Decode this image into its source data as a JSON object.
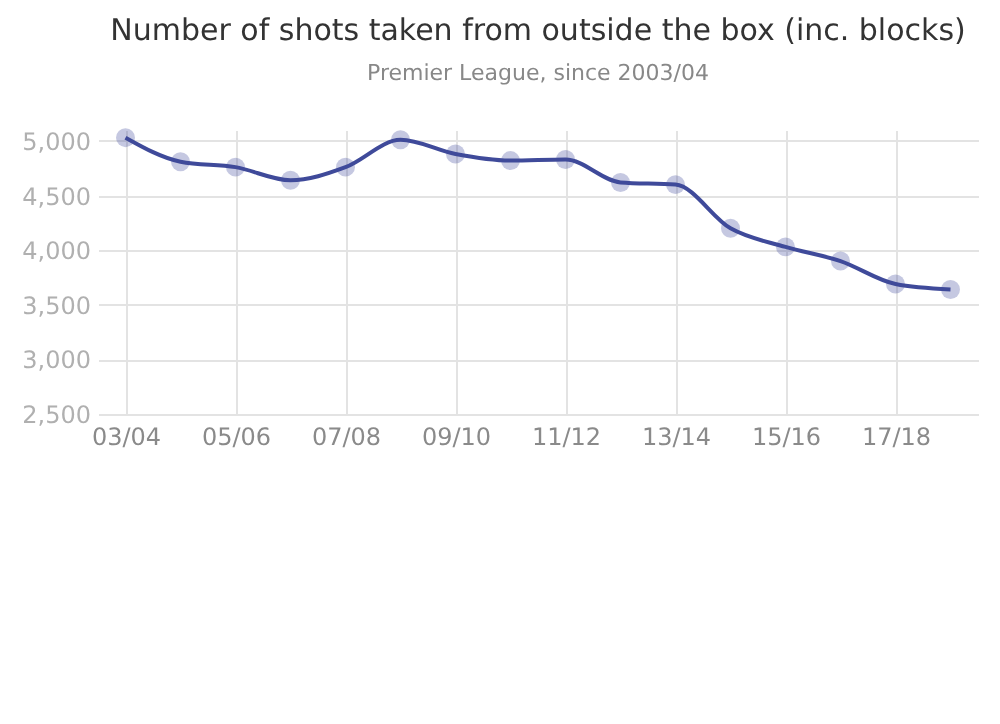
{
  "chart_data": {
    "type": "line",
    "title": "Number of shots taken from outside the box (inc. blocks)",
    "subtitle": "Premier League, since 2003/04",
    "categories": [
      "03/04",
      null,
      "05/06",
      null,
      "07/08",
      null,
      "09/10",
      null,
      "11/12",
      null,
      "13/14",
      null,
      "15/16",
      null,
      "17/18",
      null
    ],
    "series": [
      {
        "color": "#3f4a9a",
        "values": [
          5030,
          4810,
          4760,
          4640,
          4760,
          5010,
          4880,
          4820,
          4830,
          4620,
          4600,
          4200,
          4030,
          3900,
          3690,
          3640
        ]
      }
    ],
    "ylim": [
      2500,
      5100
    ],
    "yticks": [
      {
        "value": 2500,
        "label": "2,500"
      },
      {
        "value": 3000,
        "label": "3,000"
      },
      {
        "value": 3500,
        "label": "3,500"
      },
      {
        "value": 4000,
        "label": "4,000"
      },
      {
        "value": 4500,
        "label": "4,500"
      },
      {
        "value": 5000,
        "label": "5,000"
      }
    ],
    "grid": true,
    "marker": "circle",
    "line_style": "solid"
  }
}
